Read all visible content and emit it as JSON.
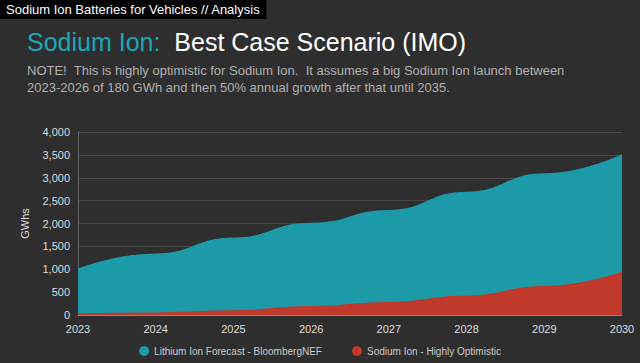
{
  "chart_data": {
    "type": "line",
    "caption": "Sodium Ion Batteries for Vehicles // Analysis",
    "title": "Sodium Ion:  Best Case Scenario (IMO)",
    "subtitle": "NOTE!  This is highly optimistic for Sodium Ion.  It assumes a big Sodium Ion launch between 2023-2026 of 180 GWh and then 50% annual growth after that until 2035.",
    "y_label": "GWhs",
    "x": [
      2023,
      2024,
      2025,
      2026,
      2027,
      2028,
      2029,
      2030
    ],
    "series": [
      {
        "name": "Lithium Ion Forecast - BloombergNEF",
        "color": "#1d9aa8",
        "values": [
          1000,
          1330,
          1680,
          2000,
          2280,
          2680,
          3080,
          3500
        ]
      },
      {
        "name": "Sodium Ion - Highly Optimistic",
        "color": "#c0392b",
        "values": [
          20,
          40,
          90,
          180,
          270,
          410,
          620,
          930
        ]
      }
    ],
    "xlim": [
      2023,
      2030
    ],
    "xticks": [
      2023,
      2024,
      2025,
      2026,
      2027,
      2028,
      2029,
      2030
    ],
    "ylim": [
      0,
      4000
    ],
    "yticks": [
      0,
      500,
      {
        "value": 1000,
        "label": "1,000"
      },
      {
        "value": 1500,
        "label": "1,500"
      },
      {
        "value": 2000,
        "label": "2,000"
      },
      {
        "value": 2500,
        "label": "2,500"
      },
      {
        "value": 3000,
        "label": "3,000"
      },
      {
        "value": 3500,
        "label": "3,500"
      },
      {
        "value": 4000,
        "label": "4,000"
      }
    ],
    "grid": true,
    "legend": "bottom",
    "stacked": false
  }
}
